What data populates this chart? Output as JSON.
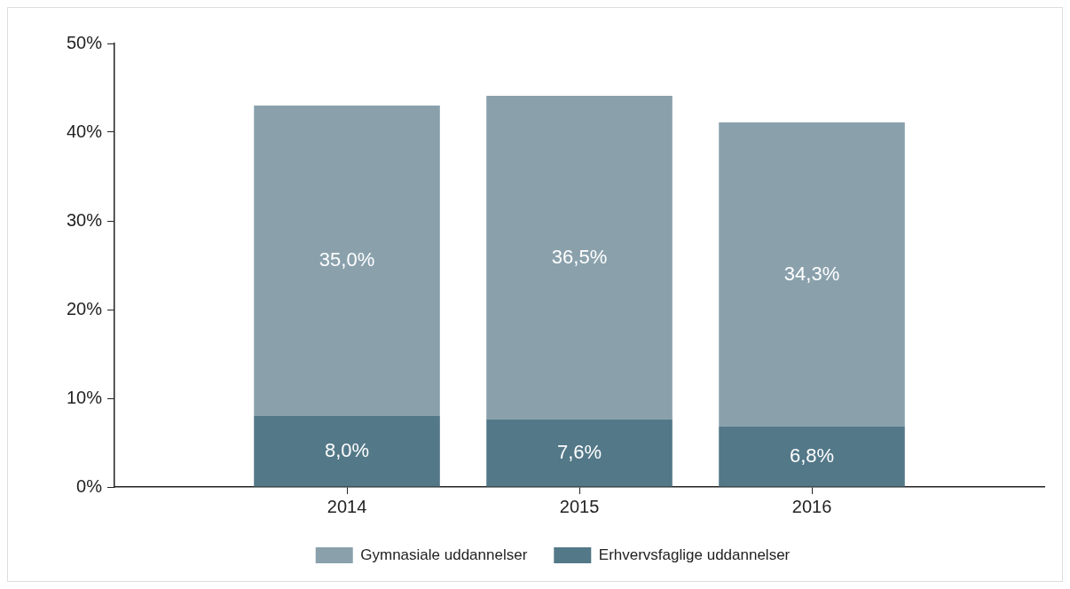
{
  "chart_data": {
    "type": "bar",
    "stacked": true,
    "categories": [
      "2014",
      "2015",
      "2016"
    ],
    "series": [
      {
        "name": "Erhvervsfaglige uddannelser",
        "color": "#537888",
        "values": [
          8.0,
          7.6,
          6.8
        ],
        "value_labels": [
          "8,0%",
          "7,6%",
          "6,8%"
        ]
      },
      {
        "name": "Gymnasiale uddannelser",
        "color": "#8aa1ac",
        "values": [
          35.0,
          36.5,
          34.3
        ],
        "value_labels": [
          "35,0%",
          "36,5%",
          "34,3%"
        ]
      }
    ],
    "ylim": [
      0,
      50
    ],
    "yticks": [
      {
        "value": 0,
        "label": "0%"
      },
      {
        "value": 10,
        "label": "10%"
      },
      {
        "value": 20,
        "label": "20%"
      },
      {
        "value": 30,
        "label": "30%"
      },
      {
        "value": 40,
        "label": "40%"
      },
      {
        "value": 50,
        "label": "50%"
      }
    ],
    "grid": false,
    "legend": "bottom"
  }
}
